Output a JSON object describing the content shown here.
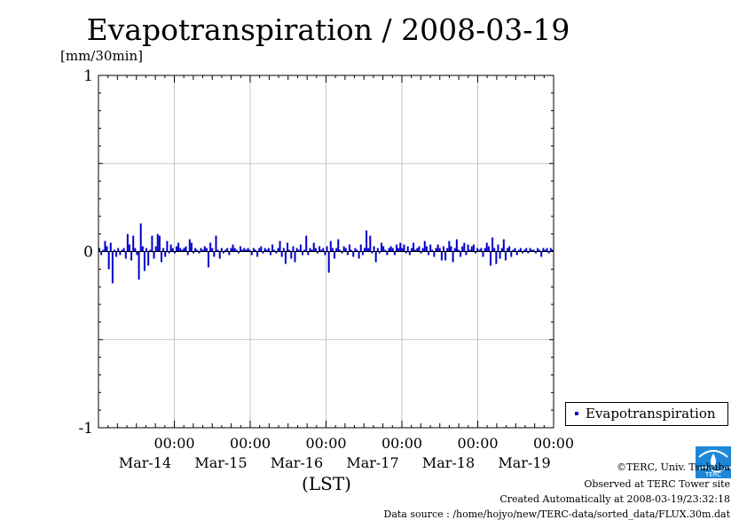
{
  "title": "Evapotranspiration / 2008-03-19",
  "y_unit": "[mm/30min]",
  "x_axis_label": "(LST)",
  "legend": {
    "label": "Evapotranspiration"
  },
  "credits": {
    "copyright": "©TERC, Univ. Tsukuba",
    "observed": "Observed at TERC Tower site",
    "created": "Created Automatically at 2008-03-19/23:32:18",
    "source": "Data source : /home/hojyo/new/TERC-data/sorted_data/FLUX.30m.dat"
  },
  "logo": {
    "text": "TERC",
    "color": "#1e88d8"
  },
  "chart_data": {
    "type": "bar",
    "series_name": "Evapotranspiration",
    "series_color": "#0000cc",
    "ylim": [
      -1,
      1
    ],
    "y_ticks": [
      1,
      0,
      -1
    ],
    "x_day_range": [
      13.0,
      19.0
    ],
    "x_tick_labels": [
      {
        "time": "00:00",
        "date": "Mar-14"
      },
      {
        "time": "00:00",
        "date": "Mar-15"
      },
      {
        "time": "00:00",
        "date": "Mar-16"
      },
      {
        "time": "00:00",
        "date": "Mar-17"
      },
      {
        "time": "00:00",
        "date": "Mar-18"
      },
      {
        "time": "00:00",
        "date": "Mar-19"
      }
    ],
    "grid": true,
    "values": [
      0.02,
      -0.02,
      0.01,
      0.06,
      0.03,
      -0.1,
      0.05,
      -0.18,
      0.01,
      -0.03,
      0.02,
      -0.02,
      0.01,
      0.02,
      -0.04,
      0.1,
      0.04,
      -0.05,
      0.09,
      0.02,
      -0.02,
      -0.16,
      0.16,
      0.03,
      -0.11,
      0.02,
      -0.08,
      0.01,
      0.09,
      -0.04,
      0.03,
      0.1,
      0.09,
      -0.06,
      0.02,
      -0.03,
      0.06,
      -0.01,
      0.04,
      0.02,
      -0.01,
      0.03,
      0.05,
      0.02,
      0.01,
      0.02,
      0.03,
      -0.02,
      0.07,
      0.05,
      -0.01,
      0.02,
      0.01,
      -0.01,
      0.02,
      0.01,
      0.03,
      0.02,
      -0.09,
      0.05,
      0.02,
      -0.03,
      0.09,
      0.01,
      -0.04,
      0.02,
      -0.01,
      0.01,
      0.02,
      -0.02,
      0.02,
      0.04,
      0.02,
      0.01,
      -0.01,
      0.03,
      0.01,
      0.02,
      0.01,
      0.02,
      0.01,
      -0.02,
      0.02,
      0.01,
      -0.03,
      0.02,
      0.03,
      -0.01,
      0.02,
      0.01,
      0.02,
      -0.02,
      0.04,
      0.01,
      -0.01,
      0.02,
      0.06,
      -0.03,
      0.02,
      -0.07,
      0.05,
      0.01,
      -0.04,
      0.03,
      -0.06,
      0.02,
      0.01,
      0.04,
      -0.02,
      0.01,
      0.09,
      -0.02,
      0.02,
      0.01,
      0.05,
      0.02,
      -0.01,
      0.03,
      0.01,
      0.02,
      -0.02,
      0.03,
      -0.12,
      0.06,
      0.02,
      -0.04,
      0.02,
      0.07,
      0.01,
      -0.01,
      0.03,
      0.02,
      -0.02,
      0.04,
      0.01,
      -0.03,
      0.02,
      0.01,
      -0.04,
      0.04,
      -0.02,
      0.02,
      0.12,
      0.02,
      0.09,
      -0.01,
      0.03,
      -0.06,
      0.02,
      -0.01,
      0.05,
      0.03,
      0.01,
      -0.02,
      0.02,
      0.03,
      0.02,
      -0.02,
      0.04,
      0.02,
      0.05,
      0.02,
      0.04,
      -0.01,
      0.03,
      -0.02,
      0.02,
      0.05,
      0.01,
      0.02,
      0.03,
      -0.01,
      0.02,
      0.06,
      0.03,
      -0.02,
      0.04,
      0.01,
      -0.03,
      0.02,
      0.04,
      0.02,
      -0.05,
      0.03,
      -0.05,
      0.02,
      0.06,
      0.03,
      -0.06,
      0.02,
      0.07,
      0.01,
      -0.03,
      0.03,
      0.05,
      -0.02,
      0.04,
      0.01,
      0.03,
      0.04,
      -0.01,
      0.02,
      0.01,
      0.02,
      -0.03,
      0.02,
      0.05,
      0.03,
      -0.08,
      0.08,
      0.02,
      -0.07,
      0.04,
      -0.04,
      0.02,
      0.07,
      -0.05,
      0.02,
      0.03,
      -0.03,
      0.01,
      0.02,
      -0.02,
      0.01,
      0.02,
      -0.01,
      0.01,
      0.02,
      -0.01,
      0.02,
      0.01,
      0.01,
      -0.01,
      0.02,
      0.01,
      -0.03,
      0.02,
      0.01,
      0.02,
      -0.01,
      0.02,
      0.01
    ]
  }
}
